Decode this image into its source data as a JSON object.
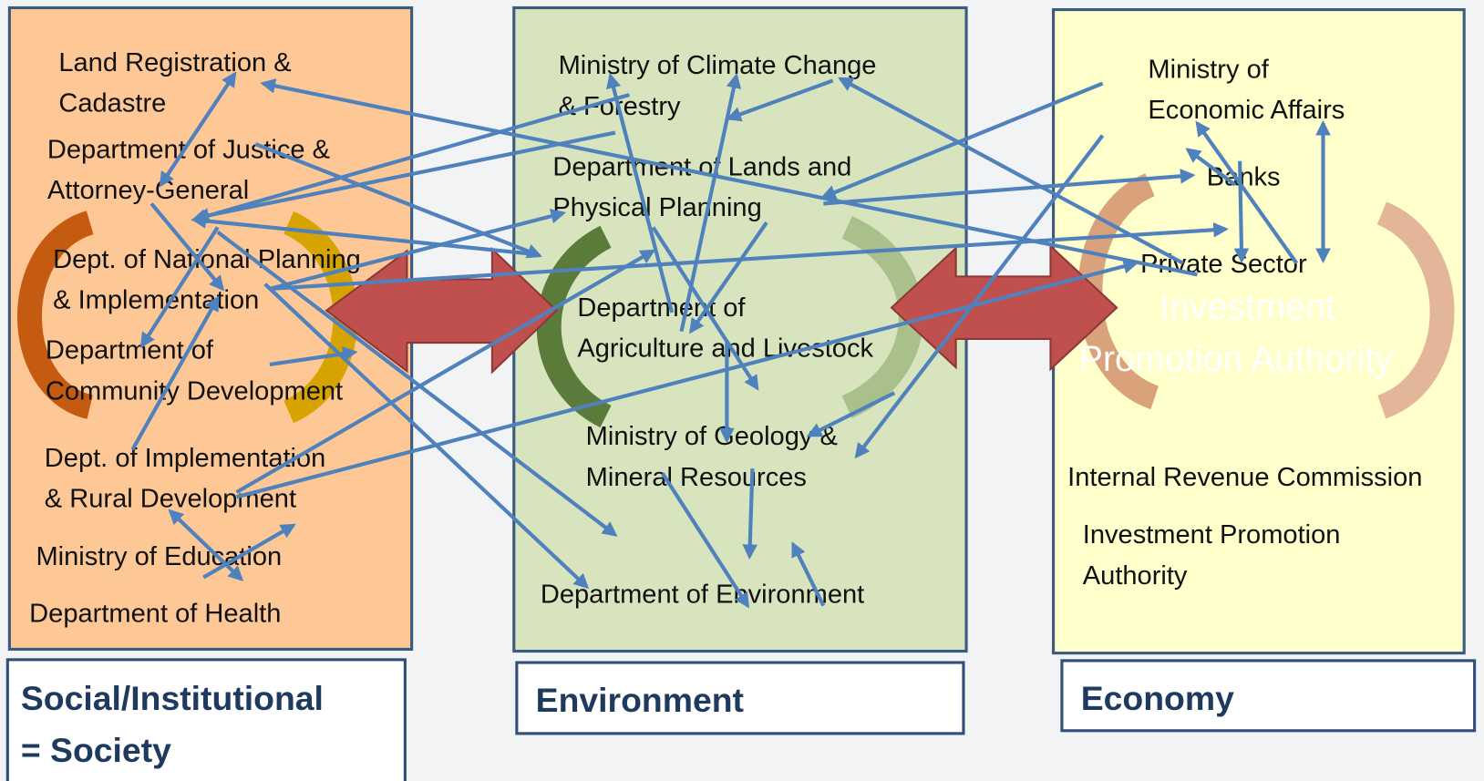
{
  "panels": [
    {
      "items": [
        [
          "Land Registration &",
          "Cadastre"
        ],
        [
          "Department of Justice &",
          "Attorney-General"
        ],
        [
          "Dept. of National Planning",
          "& Implementation"
        ],
        [
          "Department of",
          "Community Development"
        ],
        [
          "Dept. of Implementation",
          "& Rural Development"
        ],
        [
          "Ministry of Education"
        ],
        [
          "Department of Health"
        ]
      ],
      "label": [
        "Social/Institutional",
        "= Society"
      ]
    },
    {
      "items": [
        [
          "Ministry of Climate Change",
          "& Forestry"
        ],
        [
          "Department of Lands and",
          "Physical Planning"
        ],
        [
          "Department of",
          "Agriculture and Livestock"
        ],
        [
          "Ministry of Geology &",
          "Mineral Resources"
        ],
        [
          "Department of Environment"
        ]
      ],
      "label": [
        "Environment"
      ]
    },
    {
      "items": [
        [
          "Ministry of",
          "Economic Affairs"
        ],
        [
          "Banks"
        ],
        [
          "Private Sector"
        ],
        [
          "Internal Revenue Commission"
        ],
        [
          "Investment Promotion",
          "Authority"
        ]
      ],
      "label": [
        "Economy"
      ],
      "ghost_text": [
        "Investment",
        "Promotion Authority"
      ]
    }
  ]
}
